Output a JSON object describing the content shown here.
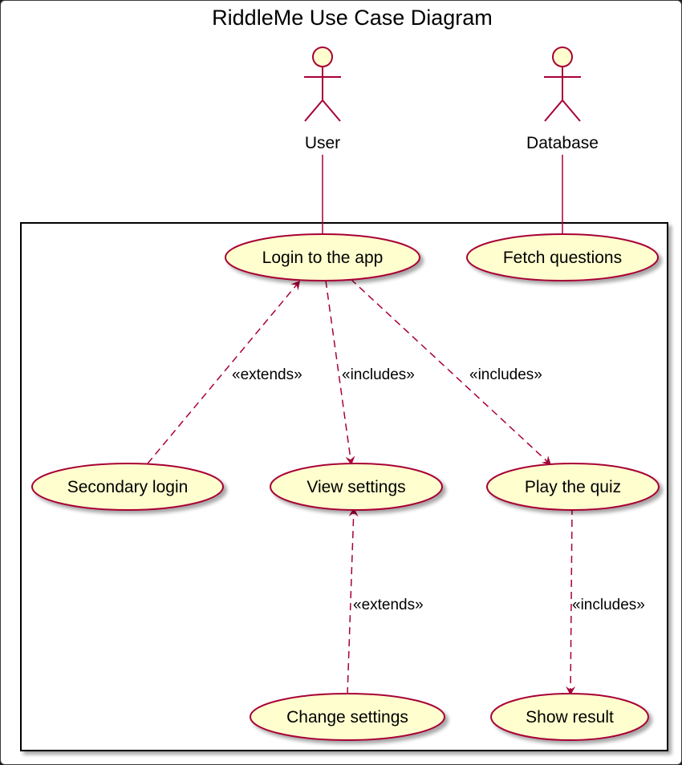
{
  "diagram": {
    "title": "RiddleMe Use Case Diagram",
    "actors": [
      {
        "id": "user",
        "name": "User"
      },
      {
        "id": "database",
        "name": "Database"
      }
    ],
    "use_cases": [
      {
        "id": "login",
        "label": "Login to the app"
      },
      {
        "id": "fetch",
        "label": "Fetch questions"
      },
      {
        "id": "secondary",
        "label": "Secondary login"
      },
      {
        "id": "view",
        "label": "View settings"
      },
      {
        "id": "play",
        "label": "Play the quiz"
      },
      {
        "id": "change",
        "label": "Change settings"
      },
      {
        "id": "result",
        "label": "Show result"
      }
    ],
    "relations": [
      {
        "from": "user",
        "to": "login",
        "type": "association",
        "label": ""
      },
      {
        "from": "database",
        "to": "fetch",
        "type": "association",
        "label": ""
      },
      {
        "from": "secondary",
        "to": "login",
        "type": "extends",
        "label": "«extends»"
      },
      {
        "from": "login",
        "to": "view",
        "type": "includes",
        "label": "«includes»"
      },
      {
        "from": "login",
        "to": "play",
        "type": "includes",
        "label": "«includes»"
      },
      {
        "from": "change",
        "to": "view",
        "type": "extends",
        "label": "«extends»"
      },
      {
        "from": "play",
        "to": "result",
        "type": "includes",
        "label": "«includes»"
      }
    ],
    "colors": {
      "usecase_fill": "#FEFECE",
      "line": "#A80036",
      "boundary": "#000000"
    }
  }
}
